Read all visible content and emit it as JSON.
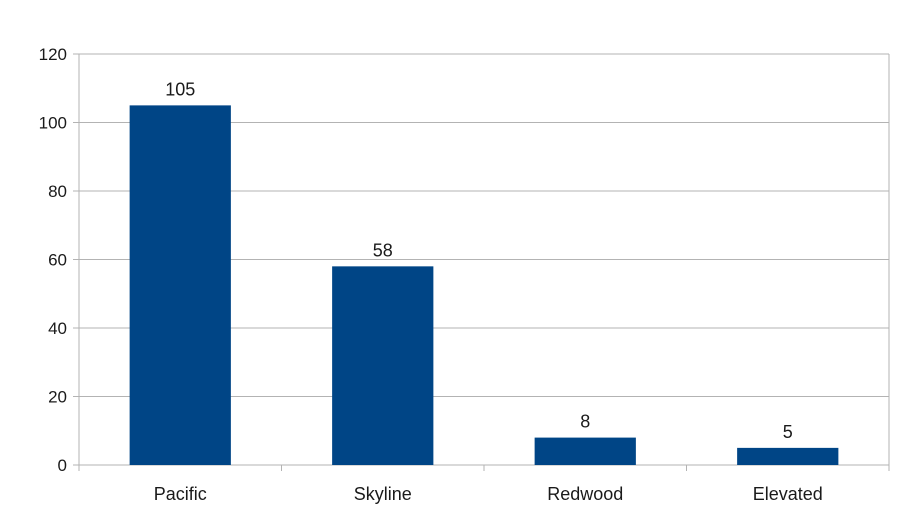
{
  "chart_data": {
    "type": "bar",
    "title": "",
    "xlabel": "",
    "ylabel": "",
    "categories": [
      "Pacific",
      "Skyline",
      "Redwood",
      "Elevated"
    ],
    "values": [
      105,
      58,
      8,
      5
    ],
    "ylim": [
      0,
      120
    ],
    "yticks": [
      0,
      20,
      40,
      60,
      80,
      100,
      120
    ],
    "grid": true,
    "legend": "none",
    "bar_color": "#004586",
    "grid_color": "#b3b3b3"
  }
}
